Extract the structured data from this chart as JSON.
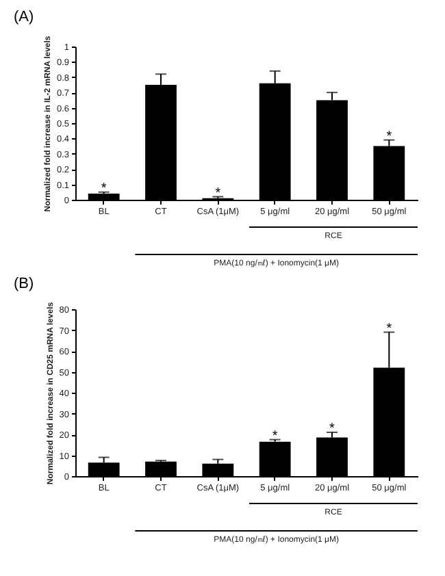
{
  "chart_data": [
    {
      "type": "bar",
      "title": "(A)",
      "ylabel": "Normalized fold increase in IL-2 mRNA levels",
      "color": "#000000",
      "categories": [
        "BL",
        "CT",
        "CsA (1μM)",
        "5 μg/ml",
        "20 μg/ml",
        "50 μg/ml"
      ],
      "values": [
        0.04,
        0.75,
        0.01,
        0.76,
        0.65,
        0.35
      ],
      "errors": [
        [
          0.04,
          0.05
        ],
        [
          0.75,
          0.82
        ],
        [
          0.01,
          0.02
        ],
        [
          0.76,
          0.84
        ],
        [
          0.65,
          0.7
        ],
        [
          0.35,
          0.39
        ]
      ],
      "ylim": [
        0,
        1
      ],
      "yticks": [
        0,
        0.1,
        0.2,
        0.3,
        0.4,
        0.5,
        0.6,
        0.7,
        0.8,
        0.9,
        1
      ],
      "annotations": [
        {
          "text": "*",
          "x": "BL",
          "y": 0.05
        },
        {
          "text": "*",
          "x": "CsA (1μM)",
          "y": 0.02
        },
        {
          "text": "*",
          "x": "50 μg/ml",
          "y": 0.39
        },
        "RCE",
        "PMA(10 ng/㎖) + Ionomycin(1 μM)"
      ]
    },
    {
      "type": "bar",
      "title": "(B)",
      "ylabel": "Normalized fold increase in CD25 mRNA levels",
      "color": "#000000",
      "categories": [
        "BL",
        "CT",
        "CsA (1μM)",
        "5 μg/ml",
        "20 μg/ml",
        "50 μg/ml"
      ],
      "values": [
        6.5,
        7,
        6,
        16.5,
        18.5,
        52
      ],
      "errors": [
        [
          6.5,
          9
        ],
        [
          7,
          7.5
        ],
        [
          6,
          8
        ],
        [
          16.5,
          17.5
        ],
        [
          18.5,
          21
        ],
        [
          52,
          69
        ]
      ],
      "ylim": [
        0,
        80
      ],
      "yticks": [
        0,
        10,
        20,
        30,
        40,
        50,
        60,
        70,
        80
      ],
      "annotations": [
        {
          "text": "*",
          "x": "5 μg/ml",
          "y": 17.5
        },
        {
          "text": "*",
          "x": "20 μg/ml",
          "y": 21
        },
        {
          "text": "*",
          "x": "50 μg/ml",
          "y": 69
        },
        "RCE",
        "PMA(10 ng/㎖) + Ionomycin(1 μM)"
      ]
    }
  ]
}
